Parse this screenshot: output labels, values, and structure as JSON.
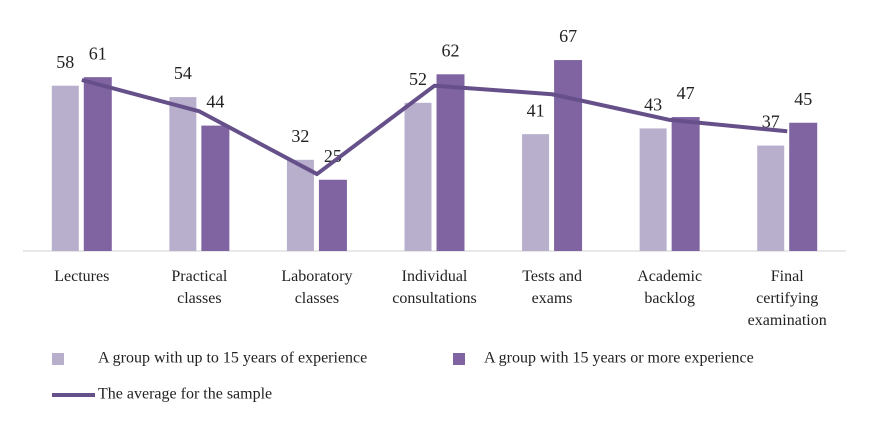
{
  "chart_data": {
    "type": "bar",
    "categories": [
      "Lectures",
      "Practical classes",
      "Laboratory classes",
      "Individual consultations",
      "Tests and exams",
      "Academic backlog",
      "Final certifying examination"
    ],
    "series": [
      {
        "name": "A group with up to 15 years of experience",
        "color": "#b8afcd",
        "values": [
          58,
          54,
          32,
          52,
          41,
          43,
          37
        ]
      },
      {
        "name": "A group with 15 years or more experience",
        "color": "#8064a2",
        "values": [
          61,
          44,
          25,
          62,
          67,
          47,
          45
        ]
      },
      {
        "name": "The average for the sample",
        "type": "line",
        "color": "#66508a",
        "values": [
          60,
          49,
          27,
          58,
          55,
          46,
          42
        ]
      }
    ],
    "ylim": [
      0,
      80
    ]
  }
}
